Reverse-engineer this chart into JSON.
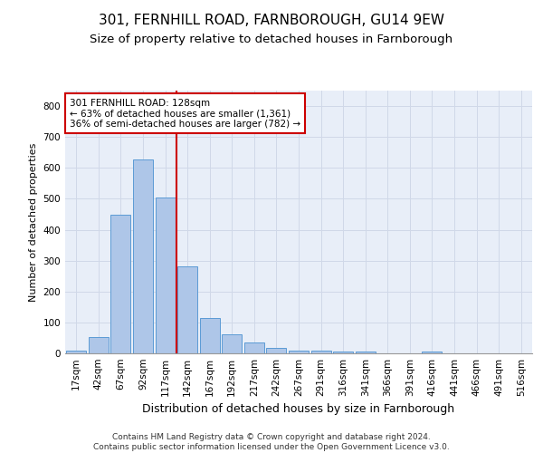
{
  "title1": "301, FERNHILL ROAD, FARNBOROUGH, GU14 9EW",
  "title2": "Size of property relative to detached houses in Farnborough",
  "xlabel": "Distribution of detached houses by size in Farnborough",
  "ylabel": "Number of detached properties",
  "categories": [
    "17sqm",
    "42sqm",
    "67sqm",
    "92sqm",
    "117sqm",
    "142sqm",
    "167sqm",
    "192sqm",
    "217sqm",
    "242sqm",
    "267sqm",
    "291sqm",
    "316sqm",
    "341sqm",
    "366sqm",
    "391sqm",
    "416sqm",
    "441sqm",
    "466sqm",
    "491sqm",
    "516sqm"
  ],
  "values": [
    10,
    53,
    447,
    627,
    505,
    280,
    115,
    63,
    35,
    18,
    10,
    8,
    7,
    7,
    0,
    0,
    7,
    0,
    0,
    0,
    0
  ],
  "bar_color": "#aec6e8",
  "bar_edge_color": "#5b9bd5",
  "vline_color": "#cc0000",
  "annotation_text": "301 FERNHILL ROAD: 128sqm\n← 63% of detached houses are smaller (1,361)\n36% of semi-detached houses are larger (782) →",
  "annotation_box_color": "#ffffff",
  "annotation_box_edge": "#cc0000",
  "ylim": [
    0,
    850
  ],
  "yticks": [
    0,
    100,
    200,
    300,
    400,
    500,
    600,
    700,
    800
  ],
  "grid_color": "#d0d8e8",
  "bg_color": "#e8eef8",
  "footnote": "Contains HM Land Registry data © Crown copyright and database right 2024.\nContains public sector information licensed under the Open Government Licence v3.0.",
  "title1_fontsize": 11,
  "title2_fontsize": 9.5,
  "xlabel_fontsize": 9,
  "ylabel_fontsize": 8,
  "tick_fontsize": 7.5,
  "annotation_fontsize": 7.5,
  "footnote_fontsize": 6.5
}
